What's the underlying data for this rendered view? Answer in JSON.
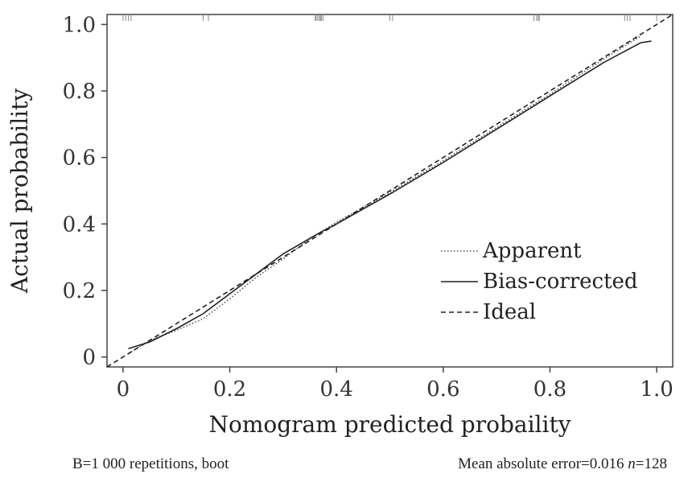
{
  "chart_data": {
    "type": "line",
    "title": "",
    "xlabel": "Nomogram predicted probaility",
    "ylabel": "Actual  probability",
    "xlim": [
      -0.03,
      1.03
    ],
    "ylim": [
      -0.03,
      1.03
    ],
    "x_ticks": [
      0,
      0.2,
      0.4,
      0.6,
      0.8,
      1.0
    ],
    "x_tick_labels": [
      "0",
      "0.2",
      "0.4",
      "0.6",
      "0.8",
      "1.0"
    ],
    "y_ticks": [
      0,
      0.2,
      0.4,
      0.6,
      0.8,
      1.0
    ],
    "y_tick_labels": [
      "0",
      "0.2",
      "0.4",
      "0.6",
      "0.8",
      "1.0"
    ],
    "grid": false,
    "legend_position": "bottom-right",
    "series": [
      {
        "name": "Apparent",
        "style": "dotted",
        "color": "#555555",
        "x": [
          0.01,
          0.05,
          0.1,
          0.15,
          0.2,
          0.25,
          0.3,
          0.35,
          0.4,
          0.5,
          0.6,
          0.7,
          0.8,
          0.9,
          0.97
        ],
        "y": [
          0.01,
          0.05,
          0.08,
          0.115,
          0.175,
          0.24,
          0.295,
          0.355,
          0.405,
          0.495,
          0.59,
          0.69,
          0.79,
          0.895,
          0.965
        ]
      },
      {
        "name": "Bias-corrected",
        "style": "solid",
        "color": "#222222",
        "x": [
          0.01,
          0.05,
          0.1,
          0.15,
          0.2,
          0.25,
          0.3,
          0.37,
          0.4,
          0.5,
          0.6,
          0.7,
          0.8,
          0.9,
          0.97,
          0.99
        ],
        "y": [
          0.025,
          0.045,
          0.085,
          0.13,
          0.19,
          0.25,
          0.31,
          0.375,
          0.4,
          0.49,
          0.585,
          0.685,
          0.785,
          0.885,
          0.945,
          0.95
        ]
      },
      {
        "name": "Ideal",
        "style": "dashed",
        "color": "#222222",
        "x": [
          -0.03,
          1.03
        ],
        "y": [
          -0.03,
          1.03
        ]
      }
    ],
    "rug_x": [
      0.0,
      0.005,
      0.01,
      0.015,
      0.15,
      0.16,
      0.36,
      0.362,
      0.365,
      0.368,
      0.37,
      0.372,
      0.375,
      0.5,
      0.505,
      0.77,
      0.775,
      0.778,
      0.78,
      0.94,
      0.945,
      0.95,
      1.0
    ]
  },
  "footer": {
    "left": "B=1 000 repetitions, boot",
    "right_prefix": "Mean absolute error=0.016 ",
    "right_n": "n",
    "right_suffix": "=128"
  }
}
